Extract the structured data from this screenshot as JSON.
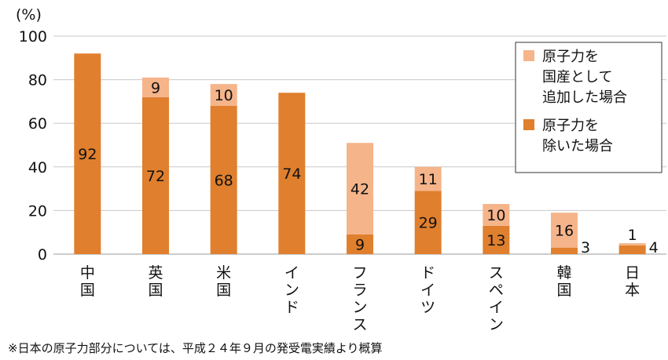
{
  "chart_data": {
    "type": "bar",
    "stacked": true,
    "ylabel": "(%)",
    "ylim": [
      0,
      100
    ],
    "yticks": [
      0,
      20,
      40,
      60,
      80,
      100
    ],
    "grid": true,
    "legend_position": "top-right",
    "categories": [
      [
        "中",
        "国"
      ],
      [
        "英",
        "国"
      ],
      [
        "米",
        "国"
      ],
      [
        "イ",
        "ン",
        "ド"
      ],
      [
        "フ",
        "ラ",
        "ン",
        "ス"
      ],
      [
        "ド",
        "イ",
        "ツ"
      ],
      [
        "ス",
        "ペ",
        "イ",
        "ン"
      ],
      [
        "韓",
        "国"
      ],
      [
        "日",
        "本"
      ]
    ],
    "series": [
      {
        "name": [
          "原子力を",
          "除いた場合"
        ],
        "color": "#e07f2d",
        "values": [
          92,
          72,
          68,
          74,
          9,
          29,
          13,
          3,
          4
        ],
        "labels": [
          "92",
          "72",
          "68",
          "74",
          "9",
          "29",
          "13",
          "3",
          "4"
        ]
      },
      {
        "name": [
          "原子力を",
          "国産として",
          "追加した場合"
        ],
        "color": "#f5b48a",
        "values": [
          0,
          9,
          10,
          0,
          42,
          11,
          10,
          16,
          1
        ],
        "labels": [
          "",
          "9",
          "10",
          "",
          "42",
          "11",
          "10",
          "16",
          "1"
        ]
      }
    ],
    "footnote": "※日本の原子力部分については、平成２４年９月の発受電実績より概算"
  }
}
